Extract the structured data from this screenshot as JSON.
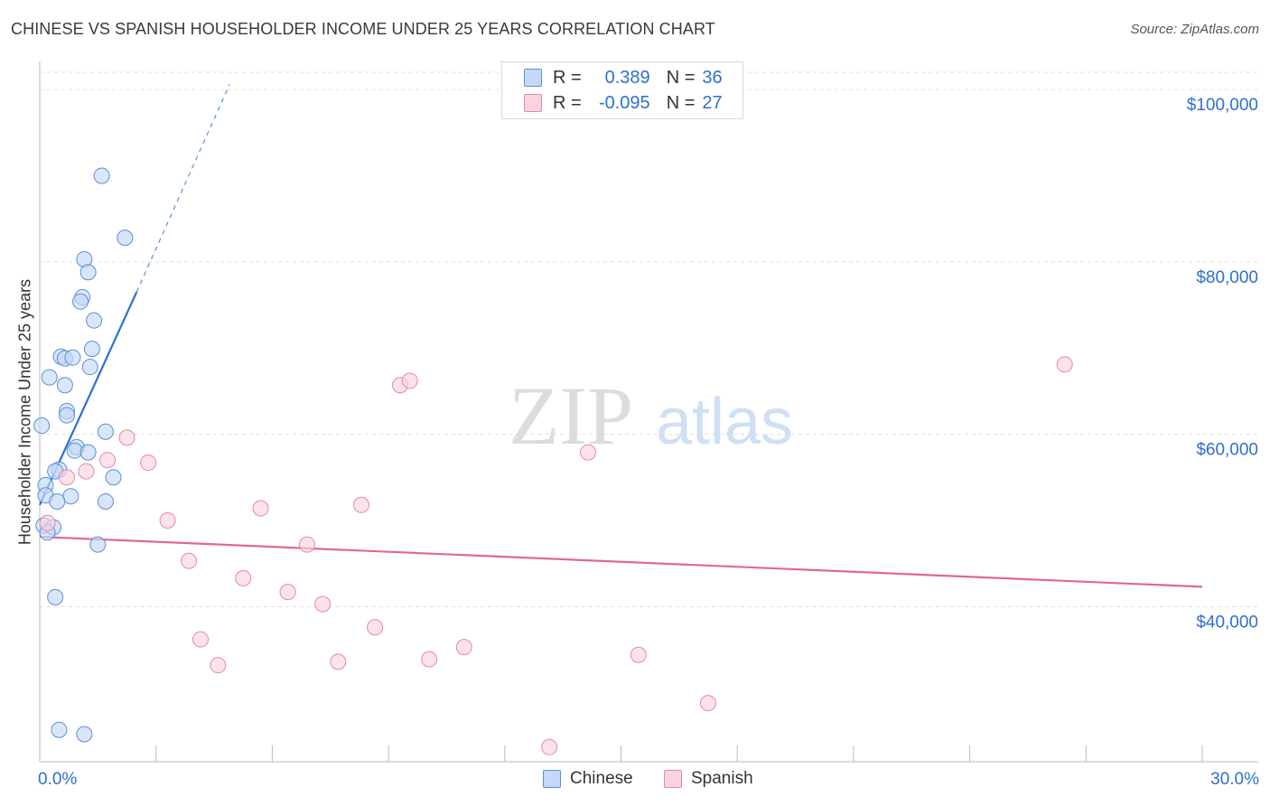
{
  "title": "CHINESE VS SPANISH HOUSEHOLDER INCOME UNDER 25 YEARS CORRELATION CHART",
  "source": "Source: ZipAtlas.com",
  "watermark": {
    "zip": "ZIP",
    "atlas": "atlas"
  },
  "legend": {
    "r_label": "R =",
    "n_label": "N =",
    "rows": [
      {
        "r": "0.389",
        "n": "36",
        "color": "#5b8fd6"
      },
      {
        "r": "-0.095",
        "n": "27",
        "color": "#e38aa5"
      }
    ]
  },
  "bottom_legend": [
    "Chinese",
    "Spanish"
  ],
  "x_axis": {
    "min_label": "0.0%",
    "max_label": "30.0%"
  },
  "chart_data": {
    "type": "scatter",
    "title": "CHINESE VS SPANISH HOUSEHOLDER INCOME UNDER 25 YEARS CORRELATION CHART",
    "xlabel": "",
    "ylabel": "Householder Income Under 25 years",
    "xlim": [
      0,
      30
    ],
    "ylim": [
      22000,
      102000
    ],
    "y_ticks": [
      40000,
      60000,
      80000,
      100000
    ],
    "y_tick_labels": [
      "$40,000",
      "$60,000",
      "$80,000",
      "$100,000"
    ],
    "x_tick_labels": [
      "0.0%",
      "30.0%"
    ],
    "grid": true,
    "series": [
      {
        "name": "Chinese",
        "color": "#5b8fd6",
        "fill": "#c4d8f7",
        "points": [
          [
            1.6,
            90000
          ],
          [
            2.2,
            82800
          ],
          [
            1.15,
            80300
          ],
          [
            1.25,
            78800
          ],
          [
            1.1,
            75900
          ],
          [
            1.05,
            75400
          ],
          [
            1.4,
            73200
          ],
          [
            1.35,
            69900
          ],
          [
            0.55,
            69000
          ],
          [
            0.65,
            68800
          ],
          [
            0.85,
            68900
          ],
          [
            1.3,
            67800
          ],
          [
            0.25,
            66600
          ],
          [
            0.65,
            65700
          ],
          [
            0.7,
            62700
          ],
          [
            0.7,
            62200
          ],
          [
            0.05,
            61000
          ],
          [
            1.7,
            60300
          ],
          [
            0.95,
            58500
          ],
          [
            0.9,
            58100
          ],
          [
            1.25,
            57900
          ],
          [
            0.5,
            55900
          ],
          [
            0.4,
            55700
          ],
          [
            1.9,
            55000
          ],
          [
            0.15,
            54100
          ],
          [
            0.8,
            52800
          ],
          [
            0.15,
            52900
          ],
          [
            0.45,
            52200
          ],
          [
            1.7,
            52200
          ],
          [
            0.1,
            49400
          ],
          [
            0.35,
            49200
          ],
          [
            0.2,
            48600
          ],
          [
            1.5,
            47200
          ],
          [
            0.4,
            41100
          ],
          [
            0.5,
            25700
          ],
          [
            1.15,
            25200
          ]
        ],
        "trend": {
          "x": [
            0.0,
            2.5
          ],
          "y": [
            51800,
            76500
          ],
          "extended_to": [
            4.9,
            100600
          ]
        }
      },
      {
        "name": "Spanish",
        "color": "#e38aa5",
        "fill": "#fbd3de",
        "points": [
          [
            0.2,
            49700
          ],
          [
            0.7,
            55000
          ],
          [
            1.2,
            55700
          ],
          [
            1.75,
            57000
          ],
          [
            2.25,
            59600
          ],
          [
            2.8,
            56700
          ],
          [
            3.3,
            50000
          ],
          [
            3.85,
            45300
          ],
          [
            4.15,
            36200
          ],
          [
            4.6,
            33200
          ],
          [
            5.25,
            43300
          ],
          [
            5.7,
            51400
          ],
          [
            6.4,
            41700
          ],
          [
            6.9,
            47200
          ],
          [
            7.3,
            40300
          ],
          [
            7.7,
            33600
          ],
          [
            8.3,
            51800
          ],
          [
            8.65,
            37600
          ],
          [
            9.3,
            65700
          ],
          [
            9.55,
            66200
          ],
          [
            10.05,
            33900
          ],
          [
            10.95,
            35300
          ],
          [
            13.15,
            23700
          ],
          [
            14.15,
            57900
          ],
          [
            15.45,
            34400
          ],
          [
            17.25,
            28800
          ],
          [
            26.45,
            68100
          ]
        ],
        "trend": {
          "x": [
            0.0,
            30.0
          ],
          "y": [
            48100,
            42300
          ]
        }
      }
    ]
  }
}
